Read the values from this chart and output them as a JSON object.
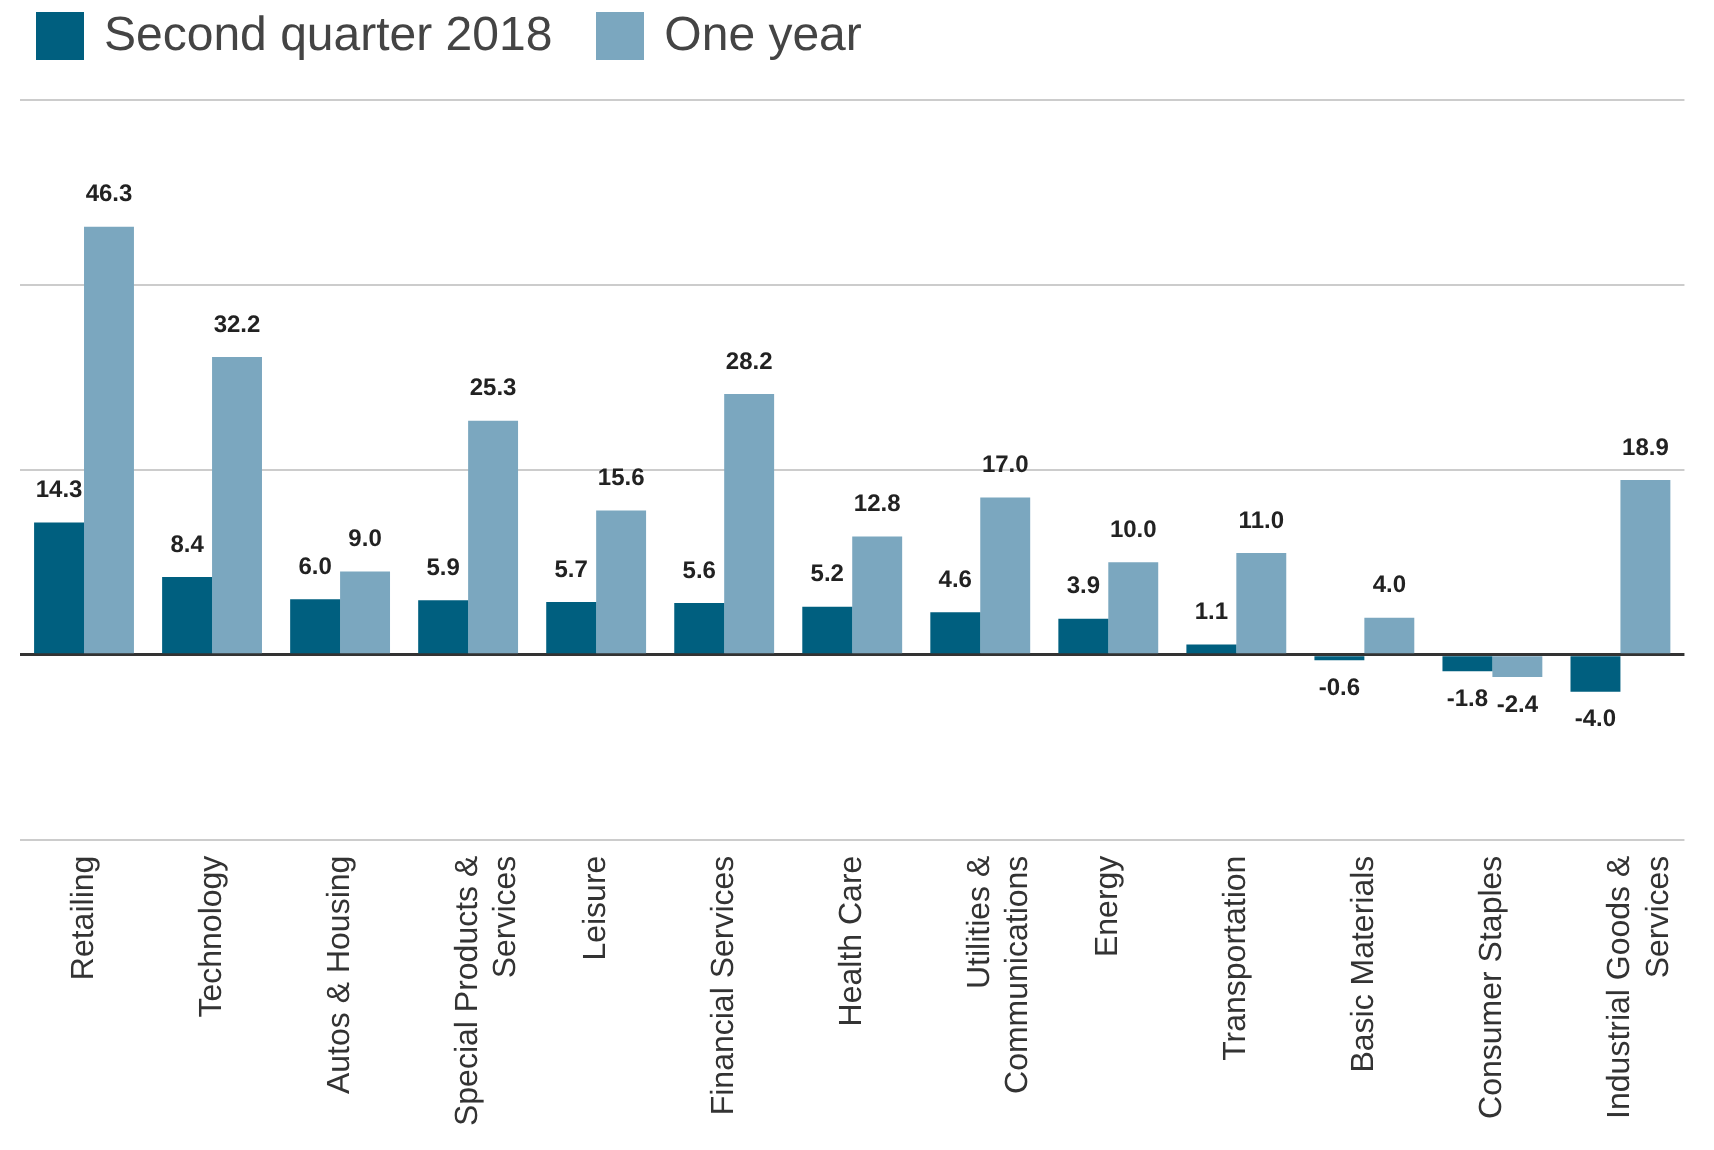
{
  "chart_data": {
    "type": "bar",
    "categories": [
      "Retailing",
      "Technology",
      "Autos & Housing",
      "Special Products & Services",
      "Leisure",
      "Financial Services",
      "Health Care",
      "Utilities & Communications",
      "Energy",
      "Transportation",
      "Basic Materials",
      "Consumer Staples",
      "Industrial Goods & Services"
    ],
    "series": [
      {
        "name": "Second quarter 2018",
        "color": "#005f7f",
        "values": [
          14.3,
          8.4,
          6.0,
          5.9,
          5.7,
          5.6,
          5.2,
          4.6,
          3.9,
          1.1,
          -0.6,
          -1.8,
          -4.0
        ],
        "value_labels": [
          "14.3",
          "8.4",
          "6.0",
          "5.9",
          "5.7",
          "5.6",
          "5.2",
          "4.6",
          "3.9",
          "1.1",
          "-0.6",
          "-1.8",
          "-4.0"
        ]
      },
      {
        "name": "One year",
        "color": "#7ba7bf",
        "values": [
          46.3,
          32.2,
          9.0,
          25.3,
          15.6,
          28.2,
          12.8,
          17.0,
          10.0,
          11.0,
          4.0,
          -2.4,
          18.9
        ],
        "value_labels": [
          "46.3",
          "32.2",
          "9.0",
          "25.3",
          "15.6",
          "28.2",
          "12.8",
          "17.0",
          "10.0",
          "11.0",
          "4.0",
          "-2.4",
          "18.9"
        ]
      }
    ],
    "ylim": [
      -20,
      60
    ],
    "yticks": [
      {
        "value": -20,
        "label": null
      },
      {
        "value": 0,
        "label": null
      },
      {
        "value": 20,
        "label": null
      },
      {
        "value": 40,
        "label": null
      },
      {
        "value": 60,
        "label": null
      }
    ],
    "grid": "y",
    "legend": "top left",
    "tick_labels": "x"
  }
}
